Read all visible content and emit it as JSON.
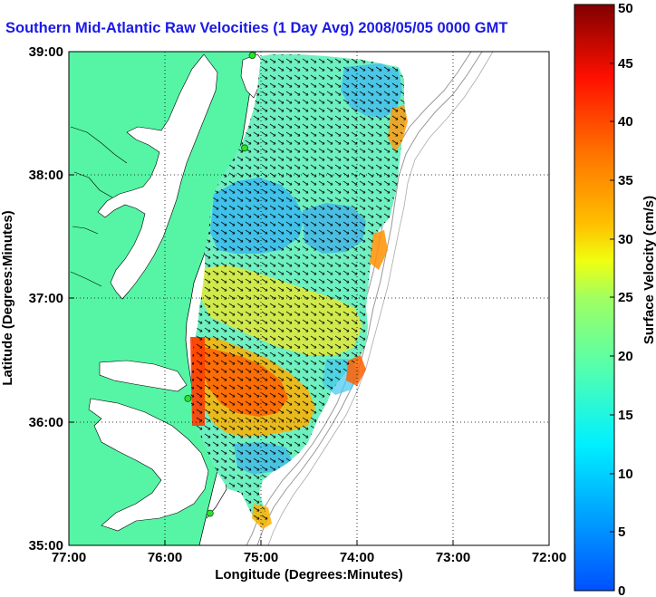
{
  "title": "Southern Mid-Atlantic Raw Velocities (1 Day Avg) 2008/05/05 0000 GMT",
  "map": {
    "xlabel": "Longitude (Degrees:Minutes)",
    "ylabel": "Latitude (Degrees:Minutes)",
    "xlim": [
      -77,
      -72
    ],
    "ylim": [
      35,
      39
    ],
    "xticks": [
      "77:00",
      "76:00",
      "75:00",
      "74:00",
      "73:00",
      "72:00"
    ],
    "yticks": [
      "35:00",
      "36:00",
      "37:00",
      "38:00",
      "39:00"
    ],
    "grid": "dotted",
    "land_color": "#55f5a5",
    "ocean_color": "#ffffff"
  },
  "colorbar": {
    "label": "Surface Velocity (cm/s)",
    "min": 0,
    "max": 50,
    "ticks": [
      "0",
      "5",
      "10",
      "15",
      "20",
      "25",
      "30",
      "35",
      "40",
      "45",
      "50"
    ],
    "colormap": "jet"
  },
  "stations": [
    {
      "lon": -75.09,
      "lat": 38.97
    },
    {
      "lon": -75.17,
      "lat": 38.22
    },
    {
      "lon": -75.76,
      "lat": 36.19
    },
    {
      "lon": -75.53,
      "lat": 35.26
    }
  ]
}
